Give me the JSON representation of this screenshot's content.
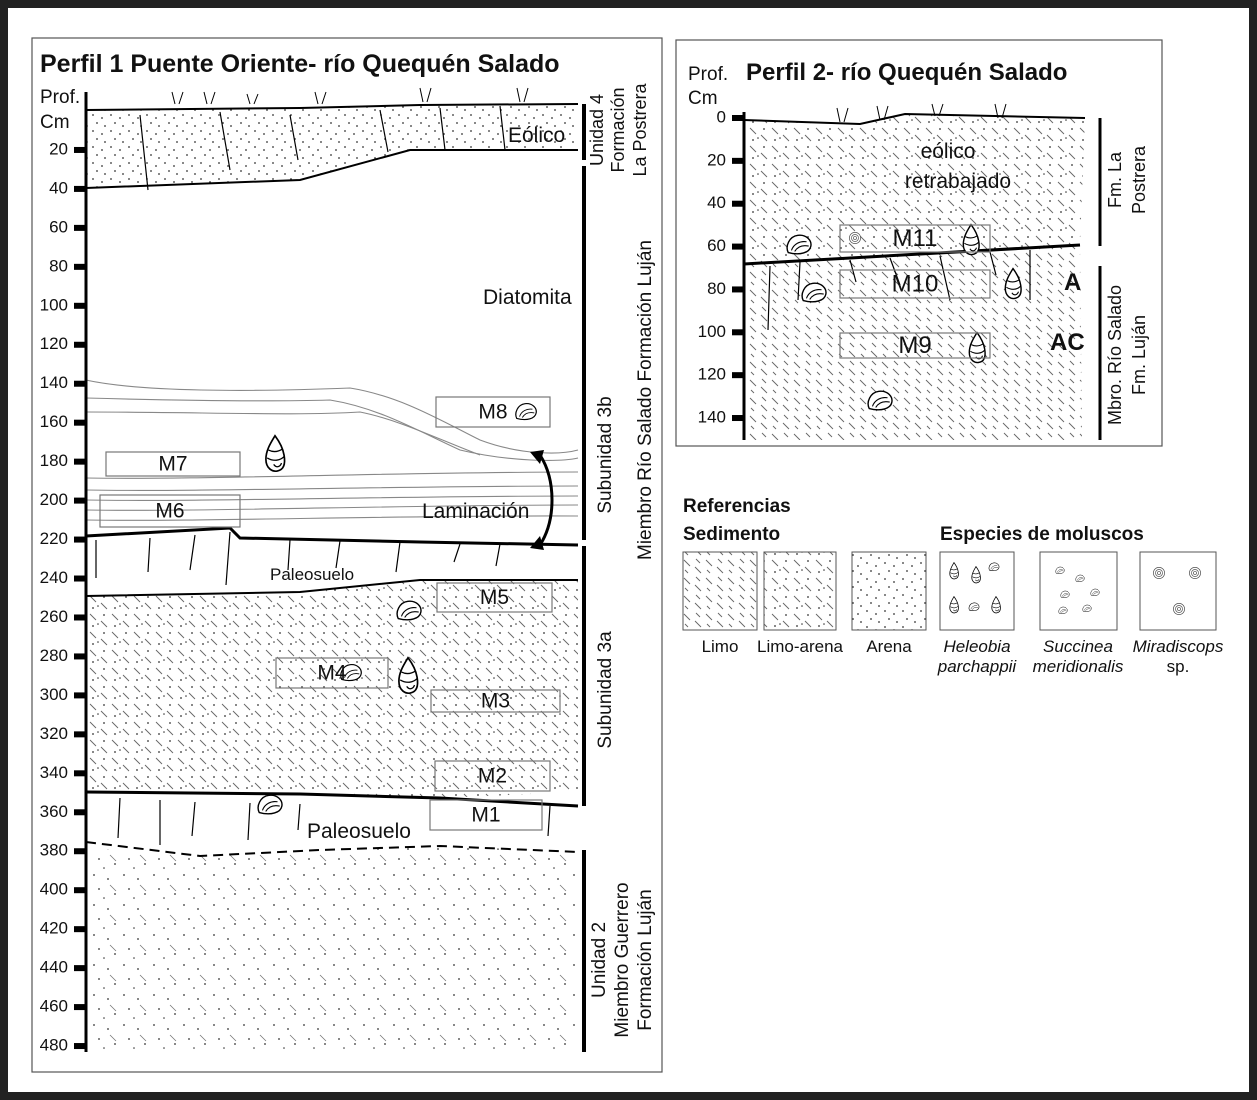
{
  "profile1": {
    "title": "Perfil 1 Puente Oriente- río Quequén Salado",
    "depth_header": [
      "Prof.",
      "Cm"
    ],
    "depth_ticks": [
      20,
      40,
      60,
      80,
      100,
      120,
      140,
      160,
      180,
      200,
      220,
      240,
      260,
      280,
      300,
      320,
      340,
      360,
      380,
      400,
      420,
      440,
      460,
      480
    ],
    "layers": {
      "eolico": "Eólico",
      "diatomita": "Diatomita",
      "laminacion": "Laminación",
      "paleosuelo_upper": "Paleosuelo",
      "paleosuelo_lower": "Paleosuelo"
    },
    "samples": [
      "M1",
      "M2",
      "M3",
      "M4",
      "M5",
      "M6",
      "M7",
      "M8"
    ],
    "units": {
      "unidad4": [
        "Unidad 4",
        "Formación",
        "La Postrera"
      ],
      "subunidad3b": "Subunidad 3b",
      "subunidad3a": "Subunidad 3a",
      "miembro": "Miembro Río Salado Formación Luján",
      "unidad2": [
        "Unidad 2",
        "Miembro Guerrero",
        "Formación Luján"
      ]
    }
  },
  "profile2": {
    "title": "Perfil 2- río Quequén Salado",
    "depth_header": [
      "Prof.",
      "Cm"
    ],
    "depth_ticks": [
      0,
      20,
      40,
      60,
      80,
      100,
      120,
      140
    ],
    "layers": {
      "eolico": [
        "eólico",
        "retrabajado"
      ],
      "horizon_a": "A",
      "horizon_ac": "AC"
    },
    "samples": [
      "M9",
      "M10",
      "M11"
    ],
    "units": {
      "postrera": [
        "Fm. La",
        "Postrera"
      ],
      "rio_salado": [
        "Mbro. Río Salado",
        "Fm. Luján"
      ]
    }
  },
  "references": {
    "title": "Referencias",
    "sediment_title": "Sedimento",
    "species_title": "Especies de moluscos",
    "sediments": [
      "Limo",
      "Limo-arena",
      "Arena"
    ],
    "species": [
      [
        "Heleobia",
        "parchappii"
      ],
      [
        "Succinea",
        "meridionalis"
      ],
      [
        "Miradiscops",
        "sp."
      ]
    ]
  }
}
